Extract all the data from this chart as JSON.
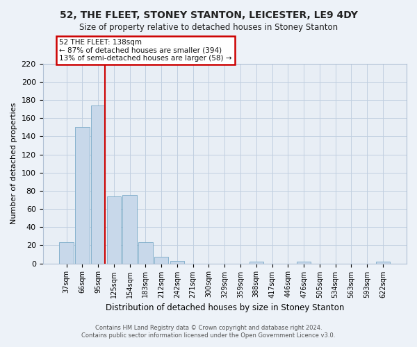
{
  "title": "52, THE FLEET, STONEY STANTON, LEICESTER, LE9 4DY",
  "subtitle": "Size of property relative to detached houses in Stoney Stanton",
  "xlabel": "Distribution of detached houses by size in Stoney Stanton",
  "ylabel": "Number of detached properties",
  "bin_labels": [
    "37sqm",
    "66sqm",
    "95sqm",
    "125sqm",
    "154sqm",
    "183sqm",
    "212sqm",
    "242sqm",
    "271sqm",
    "300sqm",
    "329sqm",
    "359sqm",
    "388sqm",
    "417sqm",
    "446sqm",
    "476sqm",
    "505sqm",
    "534sqm",
    "563sqm",
    "593sqm",
    "622sqm"
  ],
  "bar_heights": [
    23,
    150,
    174,
    74,
    75,
    23,
    7,
    3,
    0,
    0,
    0,
    0,
    2,
    0,
    0,
    2,
    0,
    0,
    0,
    0,
    2
  ],
  "bar_color": "#c8d8ea",
  "bar_edge_color": "#7aaac8",
  "vline_index": 2,
  "vline_color": "#cc0000",
  "annotation_title": "52 THE FLEET: 138sqm",
  "annotation_line1": "← 87% of detached houses are smaller (394)",
  "annotation_line2": "13% of semi-detached houses are larger (58) →",
  "annotation_box_color": "#ffffff",
  "annotation_box_edge": "#cc0000",
  "ylim": [
    0,
    220
  ],
  "yticks": [
    0,
    20,
    40,
    60,
    80,
    100,
    120,
    140,
    160,
    180,
    200,
    220
  ],
  "footer1": "Contains HM Land Registry data © Crown copyright and database right 2024.",
  "footer2": "Contains public sector information licensed under the Open Government Licence v3.0.",
  "bg_color": "#edf2f8",
  "plot_bg_color": "#e8eef5",
  "grid_color": "#c0cfe0"
}
